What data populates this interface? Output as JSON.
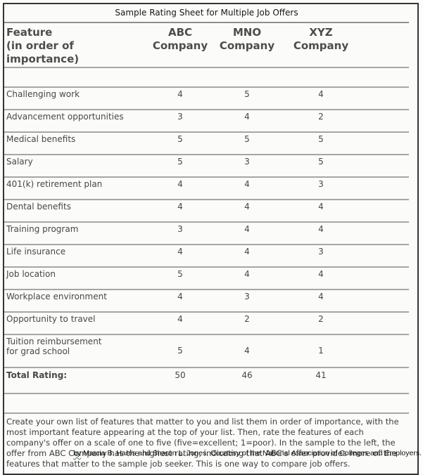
{
  "colors": {
    "outer_border": "#343434",
    "rule_line": "#a6a6a6",
    "table_text": "#474747",
    "grammar_underline_green": "#3a8a3a",
    "background": "#fbfbf9"
  },
  "sheet": {
    "title": "Sample Rating Sheet for Multiple Job Offers",
    "header": {
      "feature_title": "Feature",
      "feature_subtitle": "(in order of importance)",
      "companies": [
        {
          "line1": "ABC",
          "line2": "Company"
        },
        {
          "line1": "MNO",
          "line2": "Company"
        },
        {
          "line1": "XYZ",
          "line2": "Company"
        }
      ]
    },
    "rows": [
      {
        "feature": "Challenging work",
        "values": [
          "4",
          "5",
          "4"
        ]
      },
      {
        "feature": "Advancement opportunities",
        "values": [
          "3",
          "4",
          "2"
        ]
      },
      {
        "feature": "Medical benefits",
        "values": [
          "5",
          "5",
          "5"
        ]
      },
      {
        "feature": "Salary",
        "values": [
          "5",
          "3",
          "5"
        ]
      },
      {
        "feature": "401(k) retirement plan",
        "values": [
          "4",
          "4",
          "3"
        ]
      },
      {
        "feature": "Dental benefits",
        "values": [
          "4",
          "4",
          "4"
        ]
      },
      {
        "feature": "Training program",
        "values": [
          "3",
          "4",
          "4"
        ]
      },
      {
        "feature": "Life insurance",
        "values": [
          "4",
          "4",
          "3"
        ]
      },
      {
        "feature": "Job location",
        "values": [
          "5",
          "4",
          "4"
        ]
      },
      {
        "feature": "Workplace environment",
        "values": [
          "4",
          "3",
          "4"
        ]
      },
      {
        "feature": "Opportunity to travel",
        "values": [
          "4",
          "2",
          "2"
        ]
      },
      {
        "feature_line1": "Tuition reimbursement",
        "feature_line2": "for grad school",
        "values": [
          "5",
          "4",
          "1"
        ]
      }
    ],
    "total": {
      "label": "Total Rating:",
      "values": [
        "50",
        "46",
        "41"
      ]
    },
    "note": "Create your own list of features that matter to you and list them in order of importance, with the most important feature appearing at the top of your list. Then, rate the features of each company's offer on a scale of one to five (five=excellent; 1=poor). In the sample to the left, the offer from ABC Company has the highest rating, indicating that ABC's offer provides more of the features that matter to the sample job seeker. This is one way to compare job offers."
  },
  "footer": {
    "by_word": "by",
    "credit": " Marcia B. Harris and Sharon L. Jones. Courtesy of the National Association of Colleges and Employers."
  }
}
